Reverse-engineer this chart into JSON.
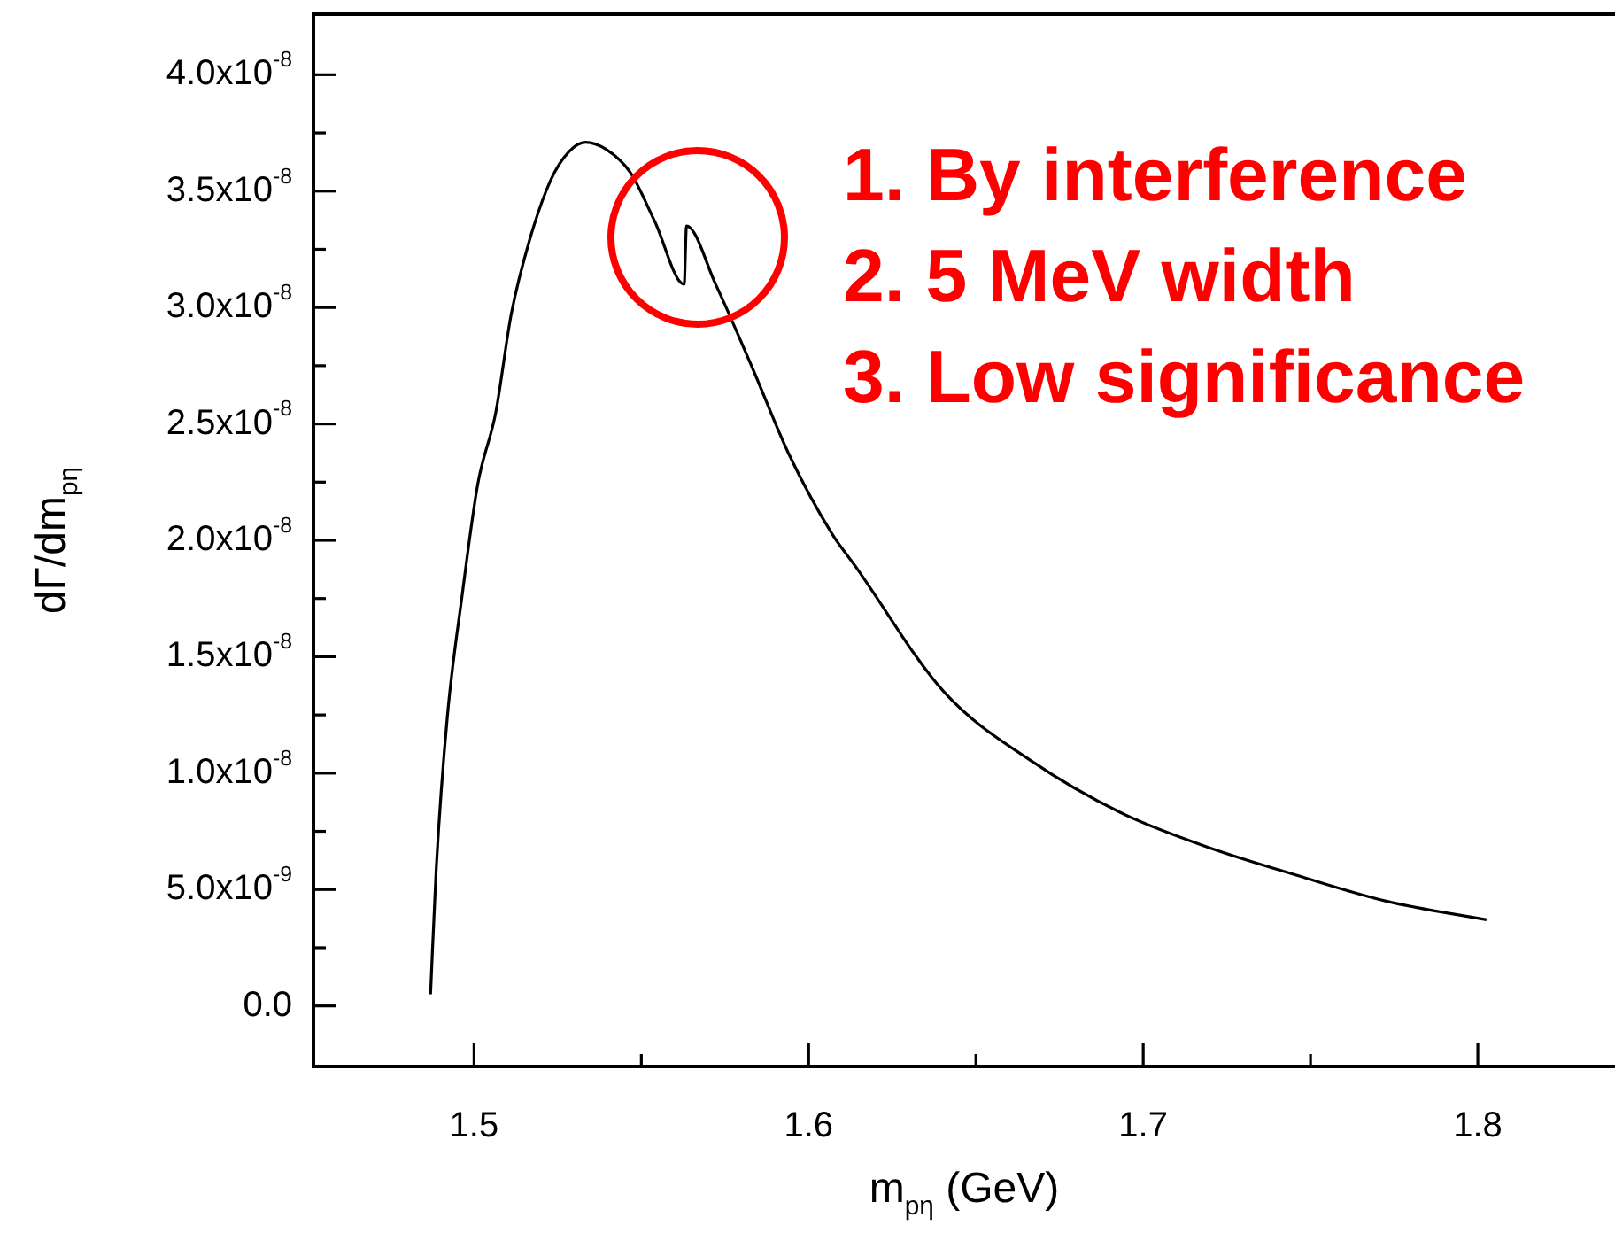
{
  "chart_data": {
    "type": "line",
    "xlabel": "m$_{pη}$ (GeV)",
    "ylabel": "dΓ/dm$_{pη}$",
    "annotations": [
      "1. By interference",
      "2. 5 MeV width",
      "3. Low significance"
    ],
    "xlim": [
      1.452,
      1.841
    ],
    "ylim": [
      -2.6e-09,
      4.26e-08
    ],
    "xticks": [
      1.5,
      {
        "value": 1.55,
        "label": null
      },
      1.6,
      {
        "value": 1.65,
        "label": null
      },
      1.7,
      {
        "value": 1.75,
        "label": null
      },
      1.8
    ],
    "yticks": [
      {
        "value": 0,
        "label": "0.0"
      },
      {
        "value": 2.5e-09,
        "label": null
      },
      {
        "value": 5e-09,
        "label": "5.0x10$^{-9}$"
      },
      {
        "value": 7.5e-09,
        "label": null
      },
      {
        "value": 1e-08,
        "label": "1.0x10$^{-8}$"
      },
      {
        "value": 1.25e-08,
        "label": null
      },
      {
        "value": 1.5e-08,
        "label": "1.5x10$^{-8}$"
      },
      {
        "value": 1.75e-08,
        "label": null
      },
      {
        "value": 2e-08,
        "label": "2.0x10$^{-8}$"
      },
      {
        "value": 2.25e-08,
        "label": null
      },
      {
        "value": 2.5e-08,
        "label": "2.5x10$^{-8}$"
      },
      {
        "value": 2.75e-08,
        "label": null
      },
      {
        "value": 3e-08,
        "label": "3.0x10$^{-8}$"
      },
      {
        "value": 3.25e-08,
        "label": null
      },
      {
        "value": 3.5e-08,
        "label": "3.5x10$^{-8}$"
      },
      {
        "value": 3.75e-08,
        "label": null
      },
      {
        "value": 4e-08,
        "label": "4.0x10$^{-8}$"
      }
    ],
    "legend": false,
    "marker": "none",
    "line_style": "solid",
    "series": [
      {
        "color": "#000000",
        "x": [
          1.487,
          1.4887,
          1.492,
          1.4965,
          1.5011,
          1.5065,
          1.5111,
          1.5166,
          1.523,
          1.5284,
          1.5333,
          1.5394,
          1.5467,
          1.554,
          1.5628,
          1.5635,
          1.5722,
          1.5832,
          1.5941,
          1.6069,
          1.6139,
          1.6404,
          1.6668,
          1.6933,
          1.7197,
          1.7462,
          1.7726,
          1.8026
        ],
        "values": [
          5e-10,
          5.9e-09,
          1.24e-08,
          1.77e-08,
          2.24e-08,
          2.55e-08,
          2.97e-08,
          3.29e-08,
          3.55e-08,
          3.67e-08,
          3.71e-08,
          3.68e-08,
          3.58e-08,
          3.37e-08,
          3.1e-08,
          3.35e-08,
          3.1e-08,
          2.74e-08,
          2.37e-08,
          2.03e-08,
          1.89e-08,
          1.35e-08,
          1.05e-08,
          8.3e-09,
          6.8e-09,
          5.6e-09,
          4.5e-09,
          3.7e-09
        ]
      }
    ]
  }
}
